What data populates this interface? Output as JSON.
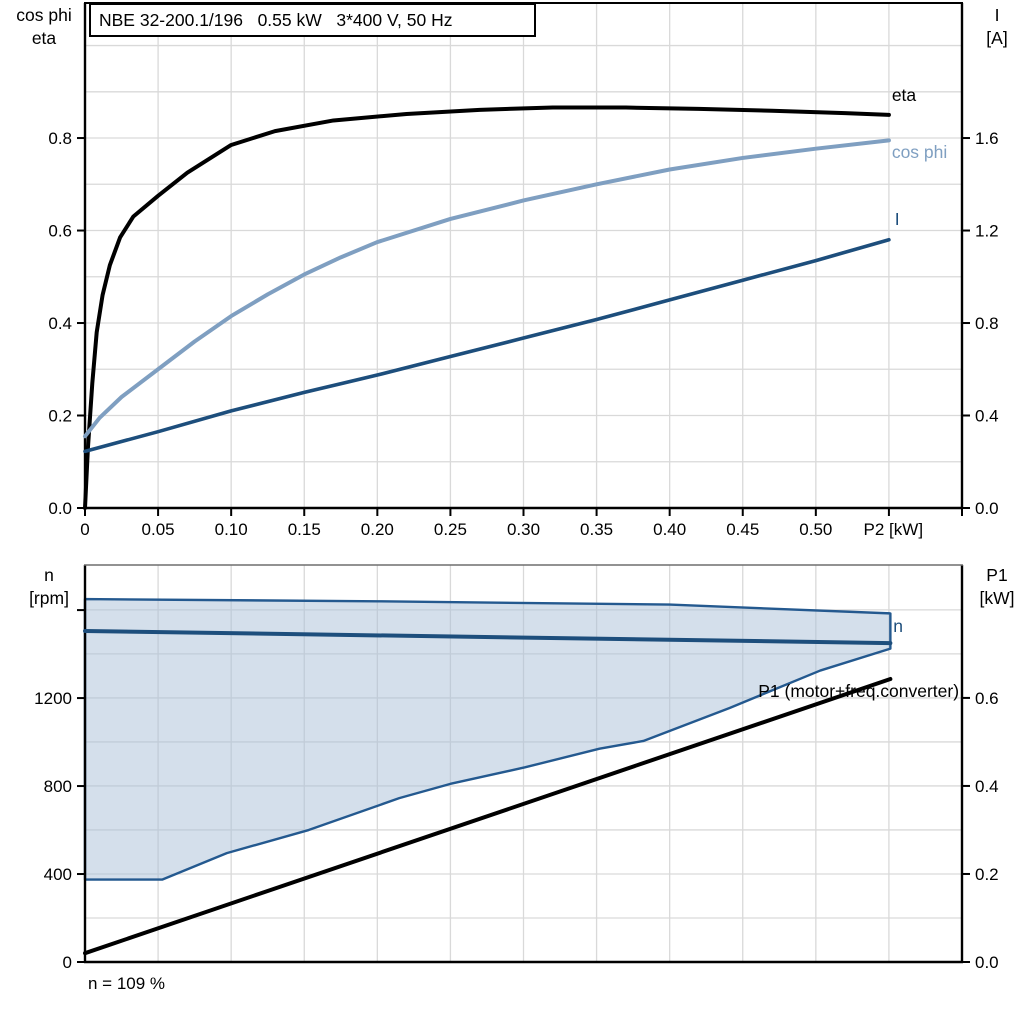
{
  "page": {
    "background": "#ffffff"
  },
  "title_box": {
    "text": "NBE 32-200.1/196   0.55 kW   3*400 V, 50 Hz"
  },
  "bottom_note": "n = 109 %",
  "colors": {
    "axis": "#000000",
    "grid": "#d9d9d9",
    "eta_curve": "#000000",
    "cos_phi_curve": "#7f9fc1",
    "current_curve": "#1d4e7c",
    "speed_line": "#1d4e7c",
    "p1_line": "#000000",
    "envelope_fill": "#a9c0d8",
    "envelope_border": "#24598f"
  },
  "chart_data": [
    {
      "name": "motor-electrical-curves",
      "type": "line",
      "x_axis": {
        "label": "P2 [kW]",
        "lim": [
          0,
          0.6
        ],
        "axis_label_at": 0.553,
        "ticks": [
          {
            "v": 0,
            "label": "0"
          },
          {
            "v": 0.05,
            "label": "0.05"
          },
          {
            "v": 0.1,
            "label": "0.10"
          },
          {
            "v": 0.15,
            "label": "0.15"
          },
          {
            "v": 0.2,
            "label": "0.20"
          },
          {
            "v": 0.25,
            "label": "0.25"
          },
          {
            "v": 0.3,
            "label": "0.30"
          },
          {
            "v": 0.35,
            "label": "0.35"
          },
          {
            "v": 0.4,
            "label": "0.40"
          },
          {
            "v": 0.45,
            "label": "0.45"
          },
          {
            "v": 0.5,
            "label": "0.50"
          },
          {
            "v": 0.55,
            "label": ""
          },
          {
            "v": 0.6,
            "label": ""
          }
        ],
        "grid": [
          0.05,
          0.1,
          0.15,
          0.2,
          0.25,
          0.3,
          0.35,
          0.4,
          0.45,
          0.5,
          0.55
        ]
      },
      "y_left": {
        "label_lines": [
          "cos phi",
          "eta"
        ],
        "lim": [
          0,
          1.092
        ],
        "ticks": [
          {
            "v": 0.0,
            "label": "0.0"
          },
          {
            "v": 0.2,
            "label": "0.2"
          },
          {
            "v": 0.4,
            "label": "0.4"
          },
          {
            "v": 0.6,
            "label": "0.6"
          },
          {
            "v": 0.8,
            "label": "0.8"
          }
        ],
        "grid": [
          0.1,
          0.2,
          0.3,
          0.4,
          0.5,
          0.6,
          0.7,
          0.8,
          0.9,
          1.0
        ]
      },
      "y_right": {
        "label_lines": [
          "I",
          "[A]"
        ],
        "lim": [
          0,
          2.184
        ],
        "ticks": [
          {
            "v": 0.0,
            "label": "0.0"
          },
          {
            "v": 0.4,
            "label": "0.4"
          },
          {
            "v": 0.8,
            "label": "0.8"
          },
          {
            "v": 1.2,
            "label": "1.2"
          },
          {
            "v": 1.6,
            "label": "1.6"
          }
        ],
        "grid": []
      },
      "series": [
        {
          "name": "eta",
          "axis": "left",
          "color": "#000000",
          "width": 4,
          "x": [
            0,
            0.002,
            0.005,
            0.008,
            0.012,
            0.017,
            0.024,
            0.033,
            0.05,
            0.07,
            0.1,
            0.13,
            0.17,
            0.22,
            0.27,
            0.32,
            0.37,
            0.42,
            0.47,
            0.52,
            0.55
          ],
          "y": [
            0,
            0.13,
            0.27,
            0.38,
            0.46,
            0.525,
            0.585,
            0.63,
            0.675,
            0.725,
            0.785,
            0.815,
            0.838,
            0.852,
            0.861,
            0.866,
            0.866,
            0.863,
            0.859,
            0.854,
            0.85
          ]
        },
        {
          "name": "cos phi",
          "axis": "left",
          "color": "#7f9fc1",
          "width": 4,
          "x": [
            0,
            0.01,
            0.025,
            0.05,
            0.075,
            0.1,
            0.125,
            0.15,
            0.175,
            0.2,
            0.25,
            0.3,
            0.35,
            0.4,
            0.45,
            0.5,
            0.55
          ],
          "y": [
            0.155,
            0.195,
            0.24,
            0.3,
            0.36,
            0.415,
            0.462,
            0.505,
            0.542,
            0.575,
            0.625,
            0.665,
            0.7,
            0.732,
            0.757,
            0.777,
            0.795
          ]
        },
        {
          "name": "I",
          "axis": "right",
          "color": "#1d4e7c",
          "width": 3.6,
          "x": [
            0,
            0.05,
            0.1,
            0.15,
            0.2,
            0.25,
            0.3,
            0.35,
            0.4,
            0.45,
            0.5,
            0.55
          ],
          "y": [
            0.245,
            0.33,
            0.42,
            0.5,
            0.575,
            0.655,
            0.735,
            0.815,
            0.9,
            0.985,
            1.07,
            1.16
          ]
        }
      ],
      "annotations": [
        {
          "text": "eta",
          "x": 0.552,
          "y": 0.88,
          "axis": "left",
          "color": "#000000",
          "anchor": "start"
        },
        {
          "text": "cos phi",
          "x": 0.552,
          "y": 0.757,
          "axis": "left",
          "color": "#7f9fc1",
          "anchor": "start"
        },
        {
          "text": "I",
          "x": 0.554,
          "y": 0.612,
          "axis": "left",
          "color": "#1d4e7c",
          "anchor": "start"
        }
      ]
    },
    {
      "name": "speed-range-and-input-power",
      "type": "area-line",
      "x_axis": {
        "label": "",
        "lim": [
          0,
          0.6
        ],
        "axis_label_at": 0,
        "ticks": [],
        "grid": [
          0.05,
          0.1,
          0.15,
          0.2,
          0.25,
          0.3,
          0.35,
          0.4,
          0.45,
          0.5,
          0.55
        ]
      },
      "y_left": {
        "label_lines": [
          "n",
          "[rpm]"
        ],
        "lim": [
          0,
          1805
        ],
        "ticks": [
          {
            "v": 1600,
            "label": ""
          },
          {
            "v": 1200,
            "label": "1200"
          },
          {
            "v": 800,
            "label": "800"
          },
          {
            "v": 400,
            "label": "400"
          },
          {
            "v": 0,
            "label": "0"
          }
        ],
        "grid": []
      },
      "y_right": {
        "label_lines": [
          "P1",
          "[kW]"
        ],
        "lim": [
          0,
          0.902
        ],
        "ticks": [
          {
            "v": 0.0,
            "label": "0.0"
          },
          {
            "v": 0.2,
            "label": "0.2"
          },
          {
            "v": 0.4,
            "label": "0.4"
          },
          {
            "v": 0.6,
            "label": "0.6"
          }
        ],
        "grid": [
          0.1,
          0.2,
          0.3,
          0.4,
          0.5,
          0.6,
          0.7,
          0.8
        ]
      },
      "envelope": {
        "name": "speed-operating-range",
        "fill": "#a9c0d8",
        "fill_opacity": 0.5,
        "stroke": "#24598f",
        "stroke_width": 2.4,
        "upper": {
          "x": [
            0,
            0.2,
            0.4,
            0.551
          ],
          "n": [
            1650,
            1640,
            1625,
            1585
          ]
        },
        "lower": {
          "x": [
            0,
            0.053,
            0.097,
            0.153,
            0.215,
            0.25,
            0.301,
            0.352,
            0.382,
            0.441,
            0.503,
            0.551
          ],
          "n": [
            375,
            375,
            495,
            600,
            745,
            810,
            885,
            970,
            1005,
            1155,
            1325,
            1425
          ]
        }
      },
      "series": [
        {
          "name": "n",
          "axis": "left",
          "color": "#1d4e7c",
          "width": 4,
          "x": [
            0,
            0.551
          ],
          "y": [
            1505,
            1450
          ]
        },
        {
          "name": "P1 (motor+freq.converter)",
          "axis": "right",
          "color": "#000000",
          "width": 4,
          "x": [
            0,
            0.551
          ],
          "y": [
            0.02,
            0.643
          ]
        }
      ],
      "annotations": [
        {
          "text": "n",
          "x": 0.553,
          "y": 1500,
          "axis": "left",
          "color": "#1d4e7c",
          "anchor": "start"
        },
        {
          "text": "P1 (motor+freq.converter)",
          "x": 0.598,
          "y": 1205,
          "axis": "left",
          "color": "#000000",
          "anchor": "end"
        }
      ]
    }
  ]
}
